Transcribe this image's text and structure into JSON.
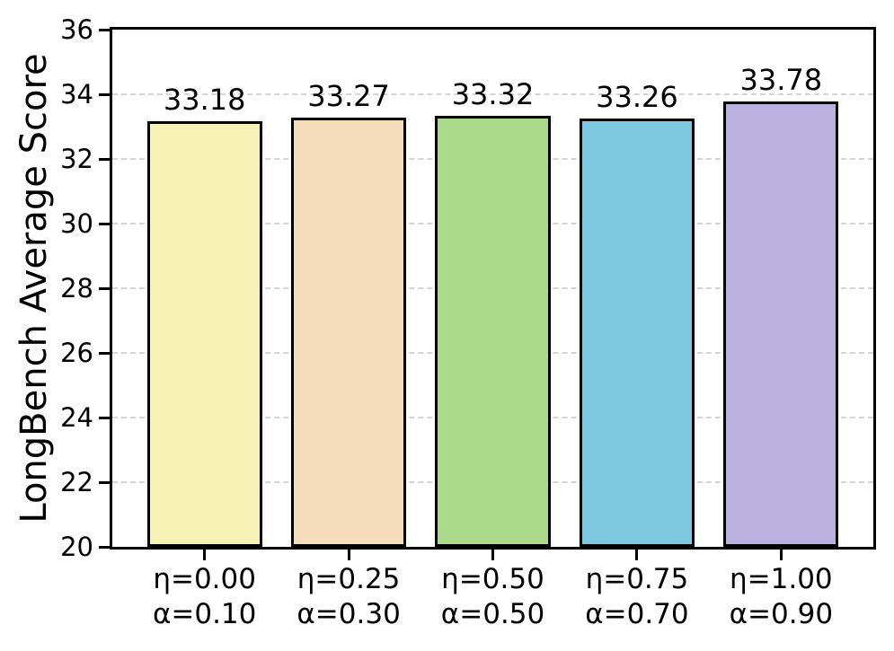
{
  "chart_data": {
    "type": "bar",
    "title": "",
    "xlabel": "",
    "ylabel": "LongBench Average Score",
    "categories": [
      {
        "line1": "η=0.00",
        "line2": "α=0.10"
      },
      {
        "line1": "η=0.25",
        "line2": "α=0.30"
      },
      {
        "line1": "η=0.50",
        "line2": "α=0.50"
      },
      {
        "line1": "η=0.75",
        "line2": "α=0.70"
      },
      {
        "line1": "η=1.00",
        "line2": "α=0.90"
      }
    ],
    "values": [
      33.18,
      33.27,
      33.32,
      33.26,
      33.78
    ],
    "value_labels": [
      "33.18",
      "33.27",
      "33.32",
      "33.26",
      "33.78"
    ],
    "bar_colors": [
      "#f6f2b6",
      "#f5dcba",
      "#abd98c",
      "#7dc8e1",
      "#bbb1de"
    ],
    "bar_edge_color": "#000000",
    "ylim": [
      20,
      36
    ],
    "yticks": [
      20,
      22,
      24,
      26,
      28,
      30,
      32,
      34,
      36
    ],
    "grid": {
      "axis": "y",
      "style": "dashed",
      "color": "#d4d4d4"
    },
    "legend": "none",
    "text_color": "#000000",
    "spine_color": "#000000",
    "background_color": "#ffffff"
  }
}
